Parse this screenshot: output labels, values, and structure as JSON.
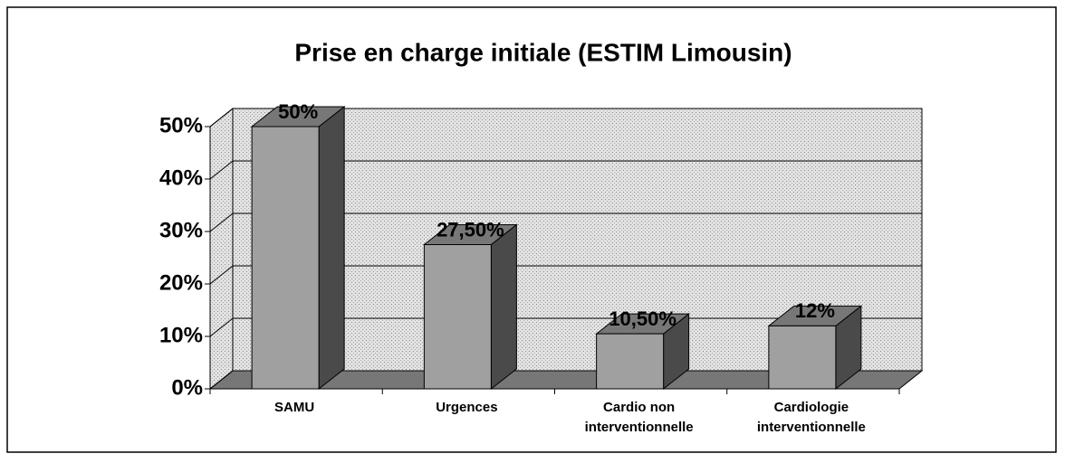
{
  "chart_data": {
    "type": "bar3d",
    "title": "Prise en charge initiale (ESTIM Limousin)",
    "categories": [
      "SAMU",
      "Urgences",
      "Cardio non interventionnelle",
      "Cardiologie interventionnelle"
    ],
    "values": [
      50,
      27.5,
      10.5,
      12
    ],
    "value_labels": [
      "50%",
      "27,50%",
      "10,50%",
      "12%"
    ],
    "color": "#a0a0a0",
    "ylim": [
      0,
      50
    ],
    "yticks": [
      {
        "value": 0,
        "label": "0%"
      },
      {
        "value": 10,
        "label": "10%"
      },
      {
        "value": 20,
        "label": "20%"
      },
      {
        "value": 30,
        "label": "30%"
      },
      {
        "value": 40,
        "label": "40%"
      },
      {
        "value": 50,
        "label": "50%"
      }
    ],
    "grid": true
  }
}
